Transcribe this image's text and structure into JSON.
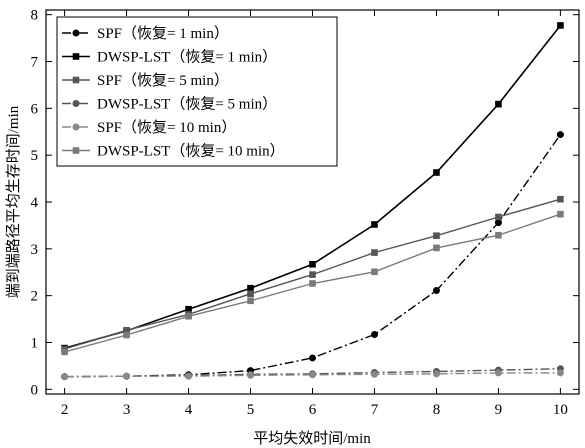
{
  "chart_data": {
    "type": "line",
    "x": [
      2,
      3,
      4,
      5,
      6,
      7,
      8,
      9,
      10
    ],
    "xlabel": "平均失效时间/min",
    "ylabel": "端到端路径平均生存时间/min",
    "xlim": [
      1.7,
      10.3
    ],
    "ylim": [
      -0.1,
      8.1
    ],
    "xticks": [
      "2",
      "3",
      "4",
      "5",
      "6",
      "7",
      "8",
      "9",
      "10"
    ],
    "yticks": [
      "0",
      "1",
      "2",
      "3",
      "4",
      "5",
      "6",
      "7",
      "8"
    ],
    "legend_position": "top-left",
    "series": [
      {
        "name": "SPF（恢复= 1 min）",
        "color": "#000000",
        "marker": "circle",
        "line_style": "dashdot",
        "values": [
          0.27,
          0.28,
          0.31,
          0.4,
          0.67,
          1.17,
          2.11,
          3.56,
          5.44
        ]
      },
      {
        "name": "DWSP-LST（恢复= 1 min）",
        "color": "#000000",
        "marker": "square",
        "line_style": "solid",
        "values": [
          0.88,
          1.25,
          1.71,
          2.16,
          2.67,
          3.52,
          4.63,
          6.09,
          7.77
        ]
      },
      {
        "name": "SPF（恢复= 5 min）",
        "color": "#555555",
        "marker": "square",
        "line_style": "solid",
        "values": [
          0.86,
          1.26,
          1.6,
          2.04,
          2.45,
          2.92,
          3.28,
          3.68,
          4.06
        ]
      },
      {
        "name": "DWSP-LST（恢复= 5 min）",
        "color": "#555555",
        "marker": "circle",
        "line_style": "dashdot",
        "values": [
          0.27,
          0.28,
          0.29,
          0.32,
          0.33,
          0.36,
          0.38,
          0.41,
          0.44
        ]
      },
      {
        "name": "SPF（恢复= 10 min）",
        "color": "#888888",
        "marker": "circle",
        "line_style": "dashdot",
        "values": [
          0.27,
          0.28,
          0.28,
          0.3,
          0.31,
          0.32,
          0.33,
          0.35,
          0.35
        ]
      },
      {
        "name": "DWSP-LST（恢复= 10 min）",
        "color": "#7a7a7a",
        "marker": "square",
        "line_style": "solid",
        "values": [
          0.8,
          1.16,
          1.56,
          1.89,
          2.26,
          2.51,
          3.02,
          3.29,
          3.74
        ]
      }
    ]
  }
}
